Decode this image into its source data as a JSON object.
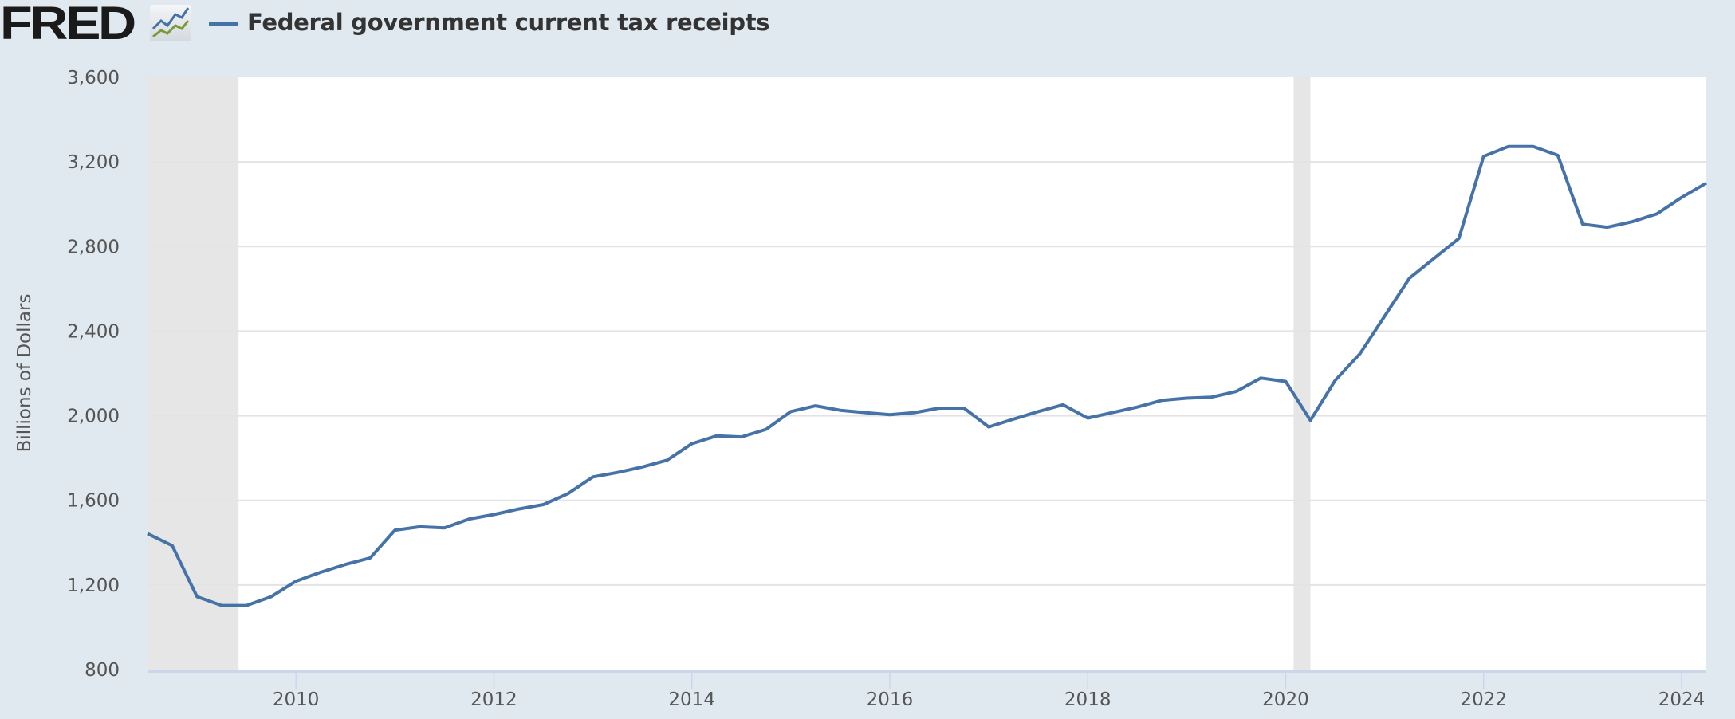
{
  "header": {
    "logo_text": "FRED",
    "title": "Federal government current tax receipts"
  },
  "colors": {
    "series": "#4572a7",
    "recession": "#e6e6e6",
    "background": "#e1e9f0"
  },
  "chart_data": {
    "type": "line",
    "title": "Federal government current tax receipts",
    "xlabel": "",
    "ylabel": "Billions of Dollars",
    "ylim": [
      800,
      3600
    ],
    "xlim": [
      2008.5,
      2024.25
    ],
    "yticks": [
      800,
      1200,
      1600,
      2000,
      2400,
      2800,
      3200,
      3600
    ],
    "ytick_labels": [
      "800",
      "1,200",
      "1,600",
      "2,000",
      "2,400",
      "2,800",
      "3,200",
      "3,600"
    ],
    "xticks": [
      2010,
      2012,
      2014,
      2016,
      2018,
      2020,
      2022,
      2024
    ],
    "xtick_labels": [
      "2010",
      "2012",
      "2014",
      "2016",
      "2018",
      "2020",
      "2022",
      "2024"
    ],
    "grid": true,
    "legend": "top-left",
    "recessions": [
      [
        2008.5,
        2009.42
      ],
      [
        2020.08,
        2020.25
      ]
    ],
    "series": [
      {
        "name": "Federal government current tax receipts",
        "x_start": 2008.5,
        "frequency": "quarterly",
        "values": [
          1443,
          1386,
          1145,
          1103,
          1103,
          1145,
          1218,
          1260,
          1297,
          1328,
          1459,
          1475,
          1470,
          1512,
          1533,
          1559,
          1580,
          1632,
          1711,
          1732,
          1758,
          1790,
          1868,
          1905,
          1900,
          1936,
          2020,
          2047,
          2026,
          2015,
          2005,
          2015,
          2036,
          2036,
          1947,
          1984,
          2020,
          2052,
          1989,
          2015,
          2041,
          2073,
          2083,
          2088,
          2115,
          2178,
          2162,
          1978,
          2167,
          2293,
          2471,
          2650,
          2744,
          2838,
          3226,
          3273,
          3273,
          3231,
          2906,
          2891,
          2917,
          2954,
          3032,
          3100
        ]
      }
    ]
  }
}
